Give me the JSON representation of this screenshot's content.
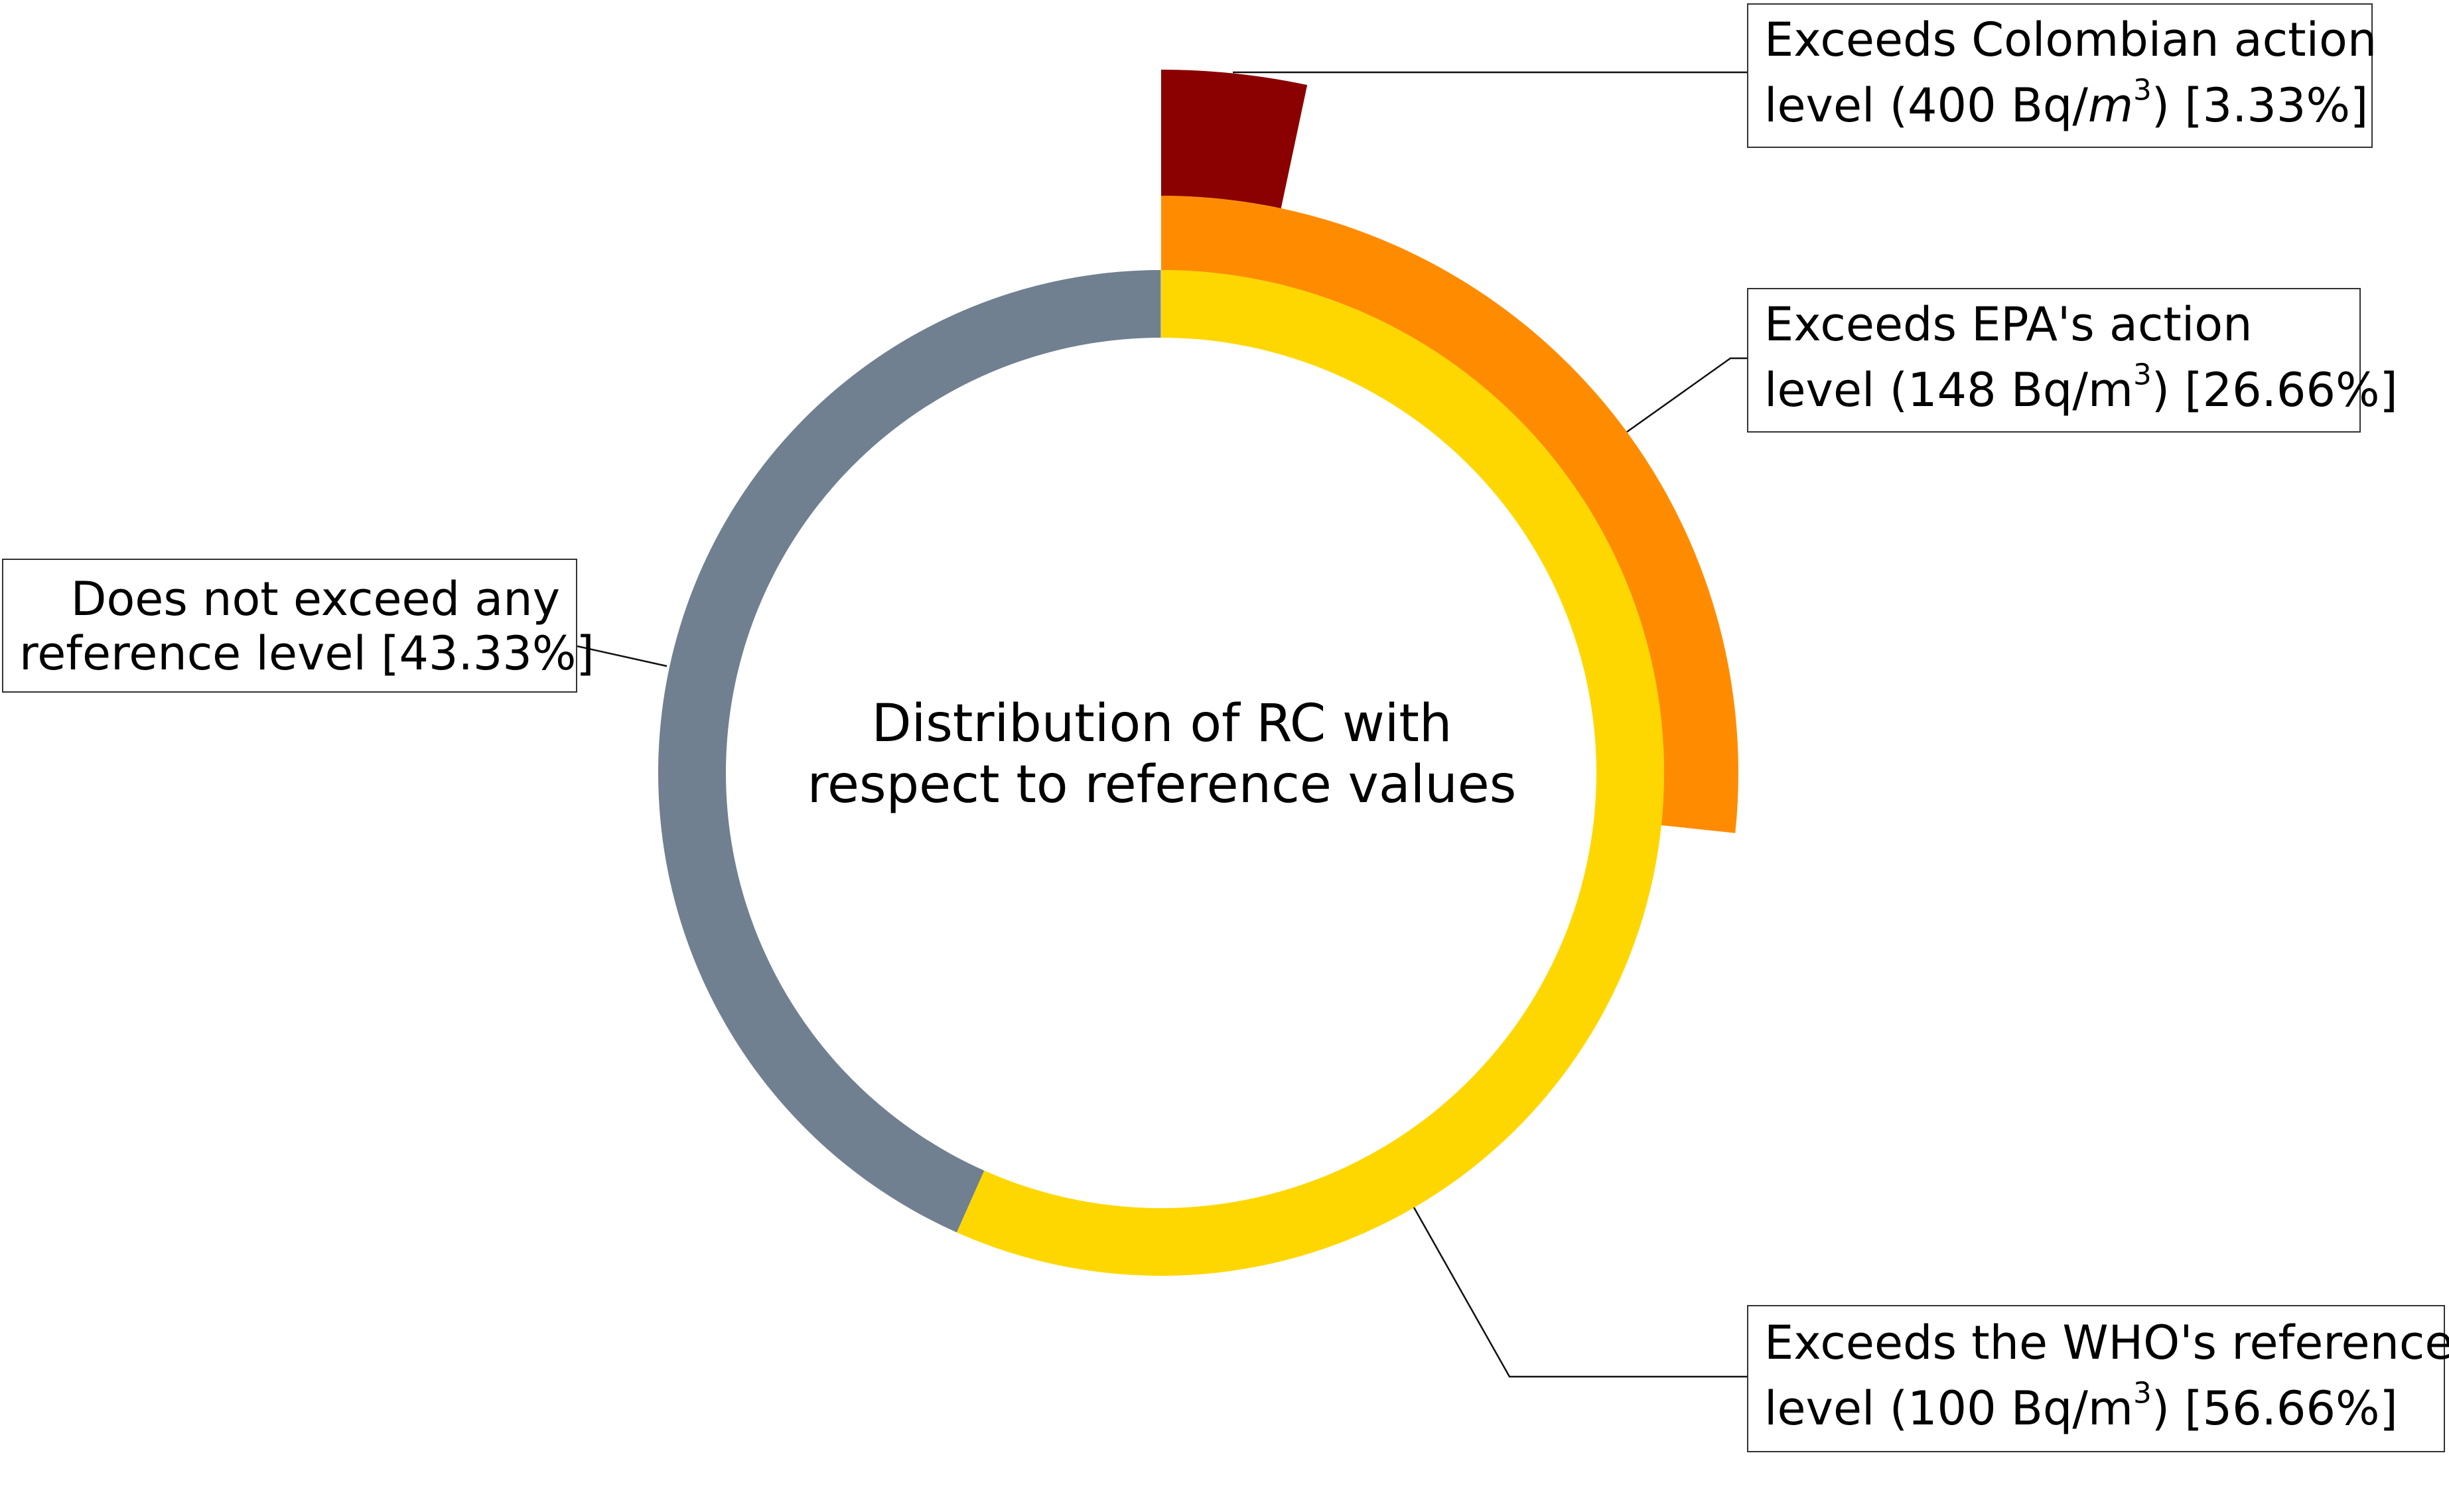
{
  "chart_data": {
    "type": "pie",
    "title": "Distribution of RC with respect to reference values",
    "title_lines": [
      "Distribution of RC with",
      "respect to reference values"
    ],
    "unit_superscript": "3",
    "series": [
      {
        "name": "Does not exceed any reference level",
        "value": 43.33,
        "color": "#708090",
        "ring": "inner",
        "start_percent": 56.66,
        "label_lines": [
          {
            "pre": "Does not exceed any",
            "sup": "",
            "post": ""
          },
          {
            "pre": "reference level [43.33%]",
            "sup": "",
            "post": ""
          }
        ]
      },
      {
        "name": "Exceeds the WHO's reference level (100 Bq/m3)",
        "value": 56.66,
        "color": "#FFD700",
        "ring": "inner",
        "start_percent": 0,
        "label_lines": [
          {
            "pre": "Exceeds the WHO's reference",
            "sup": "",
            "post": ""
          },
          {
            "pre": "level (100 Bq/m",
            "sup": "3",
            "post": ") [56.66%]"
          }
        ]
      },
      {
        "name": "Exceeds EPA's action level (148 Bq/m3)",
        "value": 26.66,
        "color": "#FF8C00",
        "ring": "middle",
        "start_percent": 0,
        "label_lines": [
          {
            "pre": "Exceeds EPA's action",
            "sup": "",
            "post": ""
          },
          {
            "pre": "level (148 Bq/m",
            "sup": "3",
            "post": ") [26.66%]"
          }
        ]
      },
      {
        "name": "Exceeds Colombian action level (400 Bq/m3)",
        "value": 3.33,
        "color": "#8B0000",
        "ring": "outer",
        "start_percent": 0,
        "label_lines": [
          {
            "pre": "Exceeds Colombian action",
            "sup": "",
            "post": ""
          },
          {
            "pre": "level (400 Bq/",
            "sup": "3",
            "post": ") [3.33%]",
            "italic_m": true
          }
        ]
      }
    ],
    "legend": "none",
    "grid": false
  }
}
